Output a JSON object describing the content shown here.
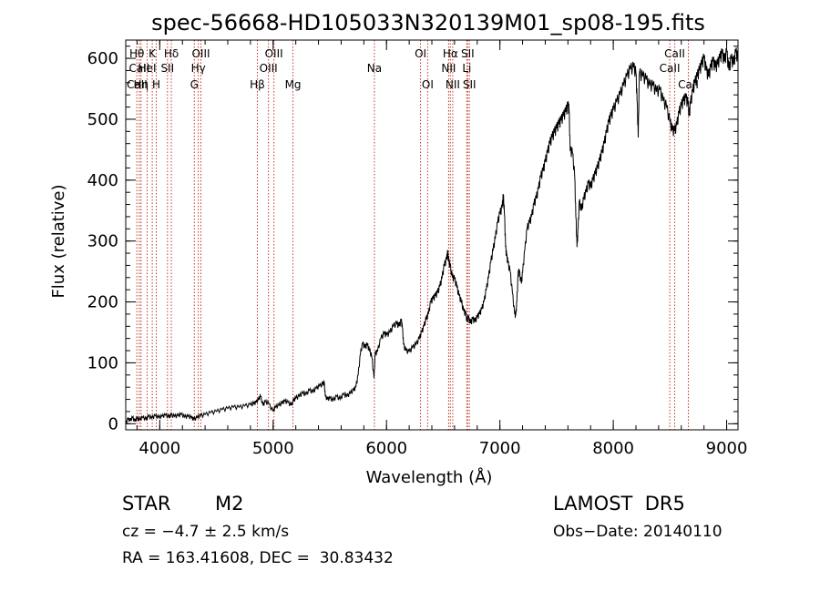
{
  "chart_data": {
    "type": "line",
    "title": "spec-56668-HD105033N320139M01_sp08-195.fits",
    "xlabel": "Wavelength (Å)",
    "ylabel": "Flux (relative)",
    "xlim": [
      3700,
      9100
    ],
    "ylim": [
      -10,
      630
    ],
    "x_ticks": [
      4000,
      5000,
      6000,
      7000,
      8000,
      9000
    ],
    "y_ticks": [
      0,
      100,
      200,
      300,
      400,
      500,
      600
    ],
    "grid": false,
    "series": [
      {
        "values": [
          [
            3700,
            0
          ],
          [
            3720,
            8
          ],
          [
            3740,
            5
          ],
          [
            3760,
            10
          ],
          [
            3780,
            4
          ],
          [
            3800,
            9
          ],
          [
            3820,
            6
          ],
          [
            3850,
            10
          ],
          [
            3880,
            7
          ],
          [
            3900,
            12
          ],
          [
            3930,
            9
          ],
          [
            3960,
            13
          ],
          [
            3990,
            10
          ],
          [
            4020,
            12
          ],
          [
            4050,
            14
          ],
          [
            4080,
            11
          ],
          [
            4100,
            14
          ],
          [
            4130,
            12
          ],
          [
            4160,
            13
          ],
          [
            4190,
            15
          ],
          [
            4220,
            11
          ],
          [
            4250,
            12
          ],
          [
            4280,
            10
          ],
          [
            4300,
            7
          ],
          [
            4330,
            10
          ],
          [
            4360,
            13
          ],
          [
            4400,
            15
          ],
          [
            4450,
            18
          ],
          [
            4500,
            20
          ],
          [
            4550,
            23
          ],
          [
            4600,
            25
          ],
          [
            4650,
            27
          ],
          [
            4700,
            27
          ],
          [
            4750,
            29
          ],
          [
            4800,
            31
          ],
          [
            4830,
            33
          ],
          [
            4850,
            35
          ],
          [
            4870,
            40
          ],
          [
            4890,
            45
          ],
          [
            4910,
            30
          ],
          [
            4930,
            36
          ],
          [
            4960,
            33
          ],
          [
            5000,
            20
          ],
          [
            5020,
            27
          ],
          [
            5050,
            30
          ],
          [
            5080,
            34
          ],
          [
            5100,
            37
          ],
          [
            5130,
            35
          ],
          [
            5160,
            30
          ],
          [
            5180,
            38
          ],
          [
            5200,
            42
          ],
          [
            5230,
            45
          ],
          [
            5260,
            50
          ],
          [
            5290,
            48
          ],
          [
            5320,
            55
          ],
          [
            5350,
            52
          ],
          [
            5380,
            58
          ],
          [
            5410,
            62
          ],
          [
            5440,
            65
          ],
          [
            5450,
            68
          ],
          [
            5460,
            45
          ],
          [
            5480,
            40
          ],
          [
            5500,
            42
          ],
          [
            5530,
            38
          ],
          [
            5560,
            45
          ],
          [
            5590,
            40
          ],
          [
            5620,
            48
          ],
          [
            5650,
            45
          ],
          [
            5680,
            50
          ],
          [
            5710,
            55
          ],
          [
            5730,
            60
          ],
          [
            5750,
            80
          ],
          [
            5770,
            115
          ],
          [
            5790,
            132
          ],
          [
            5810,
            125
          ],
          [
            5830,
            130
          ],
          [
            5850,
            120
          ],
          [
            5870,
            110
          ],
          [
            5890,
            75
          ],
          [
            5900,
            115
          ],
          [
            5920,
            118
          ],
          [
            5950,
            140
          ],
          [
            5980,
            148
          ],
          [
            6000,
            145
          ],
          [
            6030,
            150
          ],
          [
            6060,
            160
          ],
          [
            6090,
            165
          ],
          [
            6110,
            160
          ],
          [
            6130,
            170
          ],
          [
            6140,
            158
          ],
          [
            6150,
            130
          ],
          [
            6170,
            120
          ],
          [
            6200,
            118
          ],
          [
            6230,
            125
          ],
          [
            6260,
            130
          ],
          [
            6290,
            140
          ],
          [
            6310,
            150
          ],
          [
            6330,
            160
          ],
          [
            6350,
            172
          ],
          [
            6370,
            180
          ],
          [
            6390,
            200
          ],
          [
            6410,
            205
          ],
          [
            6430,
            210
          ],
          [
            6450,
            215
          ],
          [
            6470,
            225
          ],
          [
            6490,
            240
          ],
          [
            6510,
            260
          ],
          [
            6530,
            270
          ],
          [
            6540,
            282
          ],
          [
            6550,
            265
          ],
          [
            6560,
            260
          ],
          [
            6580,
            240
          ],
          [
            6600,
            238
          ],
          [
            6620,
            225
          ],
          [
            6640,
            210
          ],
          [
            6660,
            200
          ],
          [
            6680,
            185
          ],
          [
            6700,
            180
          ],
          [
            6710,
            168
          ],
          [
            6720,
            175
          ],
          [
            6740,
            165
          ],
          [
            6760,
            172
          ],
          [
            6780,
            168
          ],
          [
            6800,
            175
          ],
          [
            6820,
            180
          ],
          [
            6840,
            188
          ],
          [
            6860,
            200
          ],
          [
            6880,
            220
          ],
          [
            6900,
            240
          ],
          [
            6920,
            265
          ],
          [
            6940,
            285
          ],
          [
            6960,
            305
          ],
          [
            6980,
            330
          ],
          [
            7000,
            345
          ],
          [
            7020,
            355
          ],
          [
            7030,
            375
          ],
          [
            7040,
            345
          ],
          [
            7050,
            290
          ],
          [
            7060,
            275
          ],
          [
            7070,
            265
          ],
          [
            7090,
            250
          ],
          [
            7110,
            215
          ],
          [
            7130,
            180
          ],
          [
            7140,
            178
          ],
          [
            7150,
            200
          ],
          [
            7160,
            245
          ],
          [
            7170,
            250
          ],
          [
            7190,
            230
          ],
          [
            7200,
            248
          ],
          [
            7220,
            285
          ],
          [
            7240,
            320
          ],
          [
            7260,
            330
          ],
          [
            7280,
            340
          ],
          [
            7300,
            360
          ],
          [
            7320,
            370
          ],
          [
            7340,
            385
          ],
          [
            7360,
            405
          ],
          [
            7380,
            415
          ],
          [
            7400,
            430
          ],
          [
            7420,
            445
          ],
          [
            7440,
            460
          ],
          [
            7460,
            470
          ],
          [
            7480,
            478
          ],
          [
            7500,
            485
          ],
          [
            7520,
            492
          ],
          [
            7540,
            498
          ],
          [
            7560,
            505
          ],
          [
            7580,
            512
          ],
          [
            7600,
            522
          ],
          [
            7610,
            515
          ],
          [
            7620,
            448
          ],
          [
            7640,
            445
          ],
          [
            7660,
            405
          ],
          [
            7670,
            340
          ],
          [
            7680,
            290
          ],
          [
            7690,
            320
          ],
          [
            7700,
            365
          ],
          [
            7720,
            350
          ],
          [
            7740,
            370
          ],
          [
            7760,
            380
          ],
          [
            7780,
            395
          ],
          [
            7800,
            388
          ],
          [
            7820,
            400
          ],
          [
            7840,
            410
          ],
          [
            7860,
            420
          ],
          [
            7880,
            432
          ],
          [
            7900,
            445
          ],
          [
            7920,
            460
          ],
          [
            7940,
            478
          ],
          [
            7960,
            495
          ],
          [
            7980,
            505
          ],
          [
            8000,
            515
          ],
          [
            8030,
            528
          ],
          [
            8060,
            540
          ],
          [
            8090,
            555
          ],
          [
            8120,
            570
          ],
          [
            8150,
            582
          ],
          [
            8180,
            585
          ],
          [
            8200,
            575
          ],
          [
            8210,
            530
          ],
          [
            8220,
            470
          ],
          [
            8230,
            575
          ],
          [
            8260,
            570
          ],
          [
            8290,
            565
          ],
          [
            8320,
            555
          ],
          [
            8350,
            555
          ],
          [
            8380,
            545
          ],
          [
            8410,
            548
          ],
          [
            8440,
            530
          ],
          [
            8470,
            520
          ],
          [
            8500,
            495
          ],
          [
            8520,
            482
          ],
          [
            8540,
            480
          ],
          [
            8560,
            490
          ],
          [
            8580,
            510
          ],
          [
            8600,
            522
          ],
          [
            8620,
            530
          ],
          [
            8640,
            535
          ],
          [
            8660,
            525
          ],
          [
            8670,
            505
          ],
          [
            8680,
            525
          ],
          [
            8700,
            545
          ],
          [
            8720,
            560
          ],
          [
            8740,
            570
          ],
          [
            8760,
            580
          ],
          [
            8780,
            590
          ],
          [
            8800,
            600
          ],
          [
            8820,
            580
          ],
          [
            8840,
            570
          ],
          [
            8860,
            585
          ],
          [
            8880,
            595
          ],
          [
            8900,
            585
          ],
          [
            8920,
            590
          ],
          [
            8940,
            600
          ],
          [
            8960,
            608
          ],
          [
            8980,
            595
          ],
          [
            9000,
            610
          ],
          [
            9020,
            580
          ],
          [
            9040,
            600
          ],
          [
            9060,
            590
          ],
          [
            9080,
            610
          ],
          [
            9100,
            600
          ]
        ]
      }
    ],
    "lines": [
      {
        "label": "Hθ",
        "wavelength": 3798,
        "row": 0
      },
      {
        "label": "Hη",
        "wavelength": 3835,
        "row": 2
      },
      {
        "label": "CaII",
        "wavelength": 3820,
        "row": 1
      },
      {
        "label": "CaII",
        "wavelength": 3800,
        "row": 2
      },
      {
        "label": "HeI",
        "wavelength": 3889,
        "row": 1
      },
      {
        "label": "K",
        "wavelength": 3934,
        "row": 0
      },
      {
        "label": "H",
        "wavelength": 3969,
        "row": 2
      },
      {
        "label": "Hδ",
        "wavelength": 4102,
        "row": 0
      },
      {
        "label": "SII",
        "wavelength": 4068,
        "row": 1
      },
      {
        "label": "OIII",
        "wavelength": 4363,
        "row": 0
      },
      {
        "label": "Hγ",
        "wavelength": 4340,
        "row": 1
      },
      {
        "label": "G",
        "wavelength": 4305,
        "row": 2
      },
      {
        "label": "Hβ",
        "wavelength": 4861,
        "row": 2
      },
      {
        "label": "OIII",
        "wavelength": 5007,
        "row": 0
      },
      {
        "label": "OIII",
        "wavelength": 4959,
        "row": 1
      },
      {
        "label": "Mg",
        "wavelength": 5175,
        "row": 2
      },
      {
        "label": "Na",
        "wavelength": 5893,
        "row": 1
      },
      {
        "label": "OI",
        "wavelength": 6300,
        "row": 0
      },
      {
        "label": "OI",
        "wavelength": 6363,
        "row": 2
      },
      {
        "label": "Hα",
        "wavelength": 6563,
        "row": 0
      },
      {
        "label": "NII",
        "wavelength": 6548,
        "row": 1
      },
      {
        "label": "NII",
        "wavelength": 6584,
        "row": 2
      },
      {
        "label": "SII",
        "wavelength": 6716,
        "row": 0
      },
      {
        "label": "Li",
        "wavelength": 6708,
        "row": 1
      },
      {
        "label": "SII",
        "wavelength": 6731,
        "row": 2
      },
      {
        "label": "CaII",
        "wavelength": 8542,
        "row": 0
      },
      {
        "label": "CaII",
        "wavelength": 8498,
        "row": 1
      },
      {
        "label": "CaII",
        "wavelength": 8662,
        "row": 2
      }
    ]
  },
  "info": {
    "class": "STAR",
    "subclass": "M2",
    "cz": "cz = −4.7 ± 2.5 km/s",
    "radec": "RA = 163.41608, DEC =  30.83432",
    "survey": "LAMOST  DR5",
    "obs_date": "Obs−Date: 20140110"
  },
  "colors": {
    "line_marker": "#c0392b",
    "spectrum": "#000000"
  }
}
